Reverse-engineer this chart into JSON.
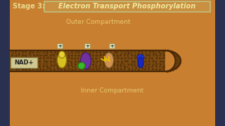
{
  "title_prefix": "Stage 3:",
  "title_main": "Electron Transport Phosphorylation",
  "outer_label": "Outer Compartment",
  "inner_label": "Inner Compartment",
  "nad_label": "NAD+",
  "bg_orange": "#c88030",
  "bg_left_dark": "#2a3050",
  "bg_right_dark": "#2a3050",
  "membrane_fill": "#7a4a10",
  "membrane_dark": "#4a2808",
  "title_bg": "#c88030",
  "title_box_fill": "#c89040",
  "title_box_edge": "#c0c080",
  "outer_label_color": "#e8c870",
  "inner_label_color": "#e8c870",
  "protein1_color": "#d8c020",
  "protein2_color": "#7030a0",
  "protein3_color": "#d09050",
  "protein4_color": "#1828c0",
  "green_color": "#38b828",
  "nad_fill": "#d0c890",
  "nad_edge": "#909060",
  "plus_box_fill": "#dcdcb0",
  "plus_box_edge": "#909060",
  "arrow_color": "#e8c000"
}
